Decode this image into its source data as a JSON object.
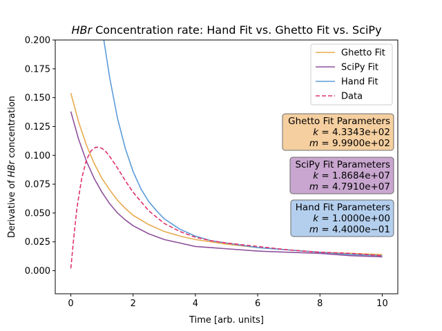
{
  "chart_data": {
    "type": "line",
    "title": "HBr Concentration rate: Hand Fit vs. Ghetto Fit vs. SciPy",
    "title_italic": "HBr",
    "title_rest": " Concentration rate: Hand Fit vs. Ghetto Fit vs. SciPy",
    "xlabel": "Time [arb. units]",
    "ylabel_pre": "Derivative of ",
    "ylabel_italic": "HBr",
    "ylabel_post": " concentration",
    "xlim": [
      -0.5,
      10.5
    ],
    "ylim": [
      -0.02,
      0.2
    ],
    "xticks": [
      0,
      2,
      4,
      6,
      8,
      10
    ],
    "yticks": [
      0.0,
      0.025,
      0.05,
      0.075,
      0.1,
      0.125,
      0.15,
      0.175,
      0.2
    ],
    "xtick_labels": [
      "0",
      "2",
      "4",
      "6",
      "8",
      "10"
    ],
    "ytick_labels": [
      "0.000",
      "0.025",
      "0.050",
      "0.075",
      "0.100",
      "0.125",
      "0.150",
      "0.175",
      "0.200"
    ],
    "grid": false,
    "legend_position": "top-right",
    "x": [
      0,
      0.25,
      0.5,
      0.75,
      1,
      1.25,
      1.5,
      1.75,
      2,
      2.5,
      3,
      3.5,
      4,
      4.5,
      5,
      6,
      7,
      8,
      9,
      10
    ],
    "series": [
      {
        "name": "Ghetto Fit",
        "color": "#e8a94c",
        "dash": "solid",
        "values": [
          0.154,
          0.129,
          0.109,
          0.093,
          0.08,
          0.07,
          0.061,
          0.054,
          0.048,
          0.04,
          0.034,
          0.03,
          0.027,
          0.025,
          0.023,
          0.02,
          0.018,
          0.016,
          0.015,
          0.014
        ]
      },
      {
        "name": "SciPy Fit",
        "color": "#8e4f9b",
        "dash": "solid",
        "values": [
          0.138,
          0.114,
          0.095,
          0.08,
          0.068,
          0.058,
          0.05,
          0.044,
          0.039,
          0.032,
          0.027,
          0.024,
          0.021,
          0.02,
          0.019,
          0.017,
          0.016,
          0.015,
          0.013,
          0.012
        ]
      },
      {
        "name": "Hand Fit",
        "color": "#5b9bd8",
        "dash": "solid",
        "x": [
          1.06,
          1.25,
          1.5,
          1.75,
          2,
          2.25,
          2.5,
          2.75,
          3,
          3.5,
          4,
          4.5,
          5,
          6,
          7,
          8,
          9,
          10
        ],
        "values": [
          0.2,
          0.167,
          0.132,
          0.106,
          0.086,
          0.071,
          0.06,
          0.052,
          0.045,
          0.036,
          0.03,
          0.026,
          0.024,
          0.02,
          0.018,
          0.016,
          0.014,
          0.013
        ]
      },
      {
        "name": "Data",
        "color": "#e0306a",
        "dash": "dashed",
        "x": [
          0,
          0.1,
          0.2,
          0.35,
          0.5,
          0.65,
          0.8,
          0.9,
          1.0,
          1.1,
          1.25,
          1.5,
          1.75,
          2,
          2.5,
          3,
          3.5,
          4,
          4.5,
          5,
          6,
          7,
          8,
          9,
          10
        ],
        "values": [
          0.002,
          0.03,
          0.055,
          0.08,
          0.096,
          0.104,
          0.107,
          0.107,
          0.106,
          0.104,
          0.099,
          0.089,
          0.078,
          0.068,
          0.052,
          0.041,
          0.034,
          0.029,
          0.026,
          0.024,
          0.021,
          0.018,
          0.016,
          0.015,
          0.013
        ]
      }
    ],
    "param_boxes": [
      {
        "name": "ghetto",
        "title": "Ghetto Fit Parameters",
        "k": "4.3343e+02",
        "m": "9.9900e+02",
        "fill": "#f5cfa0",
        "stroke": "#6b6b6b"
      },
      {
        "name": "scipy",
        "title": "SciPy Fit Parameters",
        "k": "1.8684e+07",
        "m": "4.7910e+07",
        "fill": "#c8a6cf",
        "stroke": "#6b6b6b"
      },
      {
        "name": "hand",
        "title": "Hand Fit Parameters",
        "k": "1.0000e+00",
        "m": "4.4000e−01",
        "fill": "#b4cfee",
        "stroke": "#6b6b6b"
      }
    ]
  }
}
